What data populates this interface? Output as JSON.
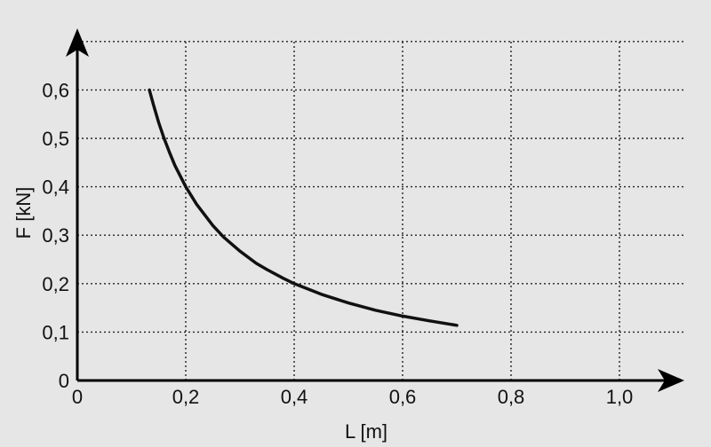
{
  "chart_data": {
    "type": "line",
    "title": "",
    "xlabel": "L [m]",
    "ylabel": "F [kN]",
    "xlim": [
      0,
      1.1
    ],
    "ylim": [
      0,
      0.7
    ],
    "x_ticks": [
      0.2,
      0.4,
      0.6,
      0.8,
      1.0
    ],
    "x_tick_labels": [
      "0,2",
      "0,4",
      "0,6",
      "0,8",
      "1,0"
    ],
    "y_ticks": [
      0.1,
      0.2,
      0.3,
      0.4,
      0.5,
      0.6
    ],
    "y_tick_labels": [
      "0,1",
      "0,2",
      "0,3",
      "0,4",
      "0,5",
      "0,6"
    ],
    "origin_x_label": "0",
    "origin_y_label": "0",
    "grid": true,
    "grid_style": "dotted",
    "series": [
      {
        "x": [
          0.133,
          0.14,
          0.15,
          0.16,
          0.17,
          0.18,
          0.2,
          0.22,
          0.25,
          0.27,
          0.3,
          0.33,
          0.35,
          0.38,
          0.4,
          0.45,
          0.5,
          0.55,
          0.6,
          0.65,
          0.7
        ],
        "y": [
          0.6,
          0.571,
          0.533,
          0.5,
          0.471,
          0.444,
          0.4,
          0.364,
          0.32,
          0.296,
          0.267,
          0.242,
          0.229,
          0.211,
          0.2,
          0.178,
          0.16,
          0.145,
          0.133,
          0.123,
          0.114
        ],
        "color": "#111111"
      }
    ]
  }
}
